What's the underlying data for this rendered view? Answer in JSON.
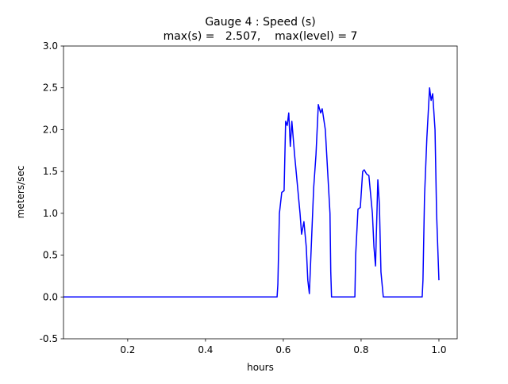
{
  "chart_data": {
    "type": "line",
    "title": "Gauge 4 : Speed (s)",
    "subtitle": "max(s) =   2.507,    max(level) = 7",
    "xlabel": "hours",
    "ylabel": "meters/sec",
    "xlim": [
      0.035,
      1.047
    ],
    "ylim": [
      -0.5,
      3.0
    ],
    "xticks": [
      0.2,
      0.4,
      0.6,
      0.8,
      {
        "value": 1,
        "label": "1.0"
      }
    ],
    "yticks": [
      -0.5,
      {
        "value": 0,
        "label": "0.0"
      },
      0.5,
      {
        "value": 1,
        "label": "1.0"
      },
      1.5,
      {
        "value": 2,
        "label": "2.0"
      },
      2.5,
      {
        "value": 3,
        "label": "3.0"
      }
    ],
    "grid": false,
    "series": [
      {
        "name": "speed",
        "color": "#0000ff",
        "x": [
          0.035,
          0.584,
          0.586,
          0.59,
          0.596,
          0.602,
          0.606,
          0.61,
          0.614,
          0.618,
          0.622,
          0.629,
          0.637,
          0.643,
          0.647,
          0.653,
          0.659,
          0.663,
          0.667,
          0.671,
          0.678,
          0.684,
          0.69,
          0.696,
          0.7,
          0.708,
          0.714,
          0.72,
          0.722,
          0.724,
          0.784,
          0.786,
          0.792,
          0.798,
          0.804,
          0.808,
          0.814,
          0.82,
          0.829,
          0.833,
          0.837,
          0.843,
          0.847,
          0.851,
          0.857,
          0.957,
          0.959,
          0.963,
          0.969,
          0.976,
          0.98,
          0.984,
          0.99,
          0.994,
          1.0
        ],
        "values": [
          0,
          0,
          0.15,
          1.0,
          1.25,
          1.27,
          2.1,
          2.05,
          2.2,
          1.8,
          2.1,
          1.7,
          1.3,
          1.0,
          0.75,
          0.9,
          0.6,
          0.2,
          0.04,
          0.5,
          1.3,
          1.7,
          2.3,
          2.2,
          2.25,
          2.0,
          1.5,
          1.0,
          0.3,
          0,
          0,
          0.5,
          1.05,
          1.07,
          1.5,
          1.52,
          1.47,
          1.45,
          1.0,
          0.6,
          0.37,
          1.4,
          1.1,
          0.3,
          0,
          0,
          0.2,
          1.2,
          1.9,
          2.5,
          2.35,
          2.43,
          2.0,
          1.0,
          0.2
        ]
      }
    ]
  }
}
